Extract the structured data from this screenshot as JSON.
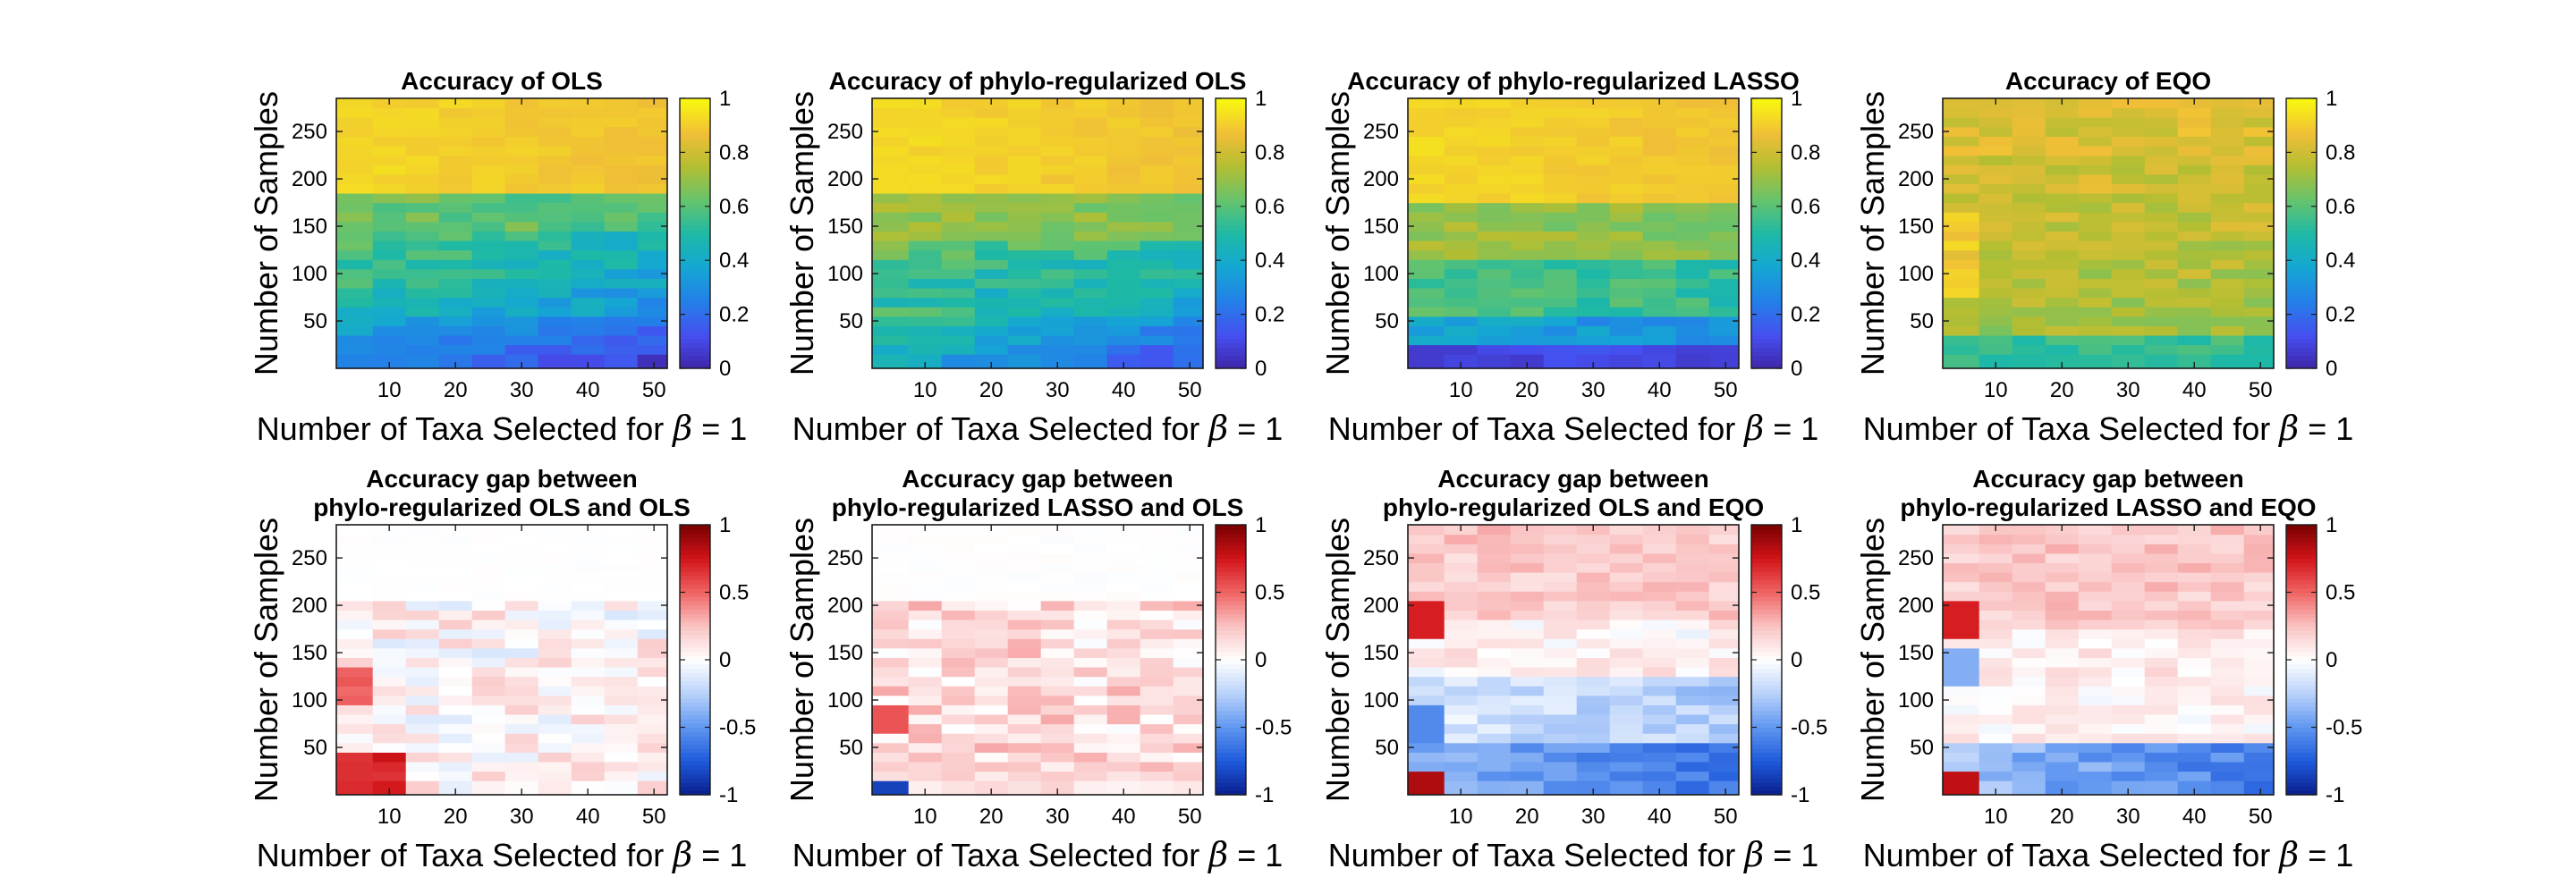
{
  "chart_data": [
    {
      "type": "heatmap",
      "title": "Accuracy of OLS",
      "xlabel": "Number of Taxa Selected for",
      "xlabel_symbol": "β",
      "xlabel_suffix": "= 1",
      "ylabel": "Number of Samples",
      "xticks": [
        "10",
        "20",
        "30",
        "40",
        "50"
      ],
      "yticks": [
        "50",
        "100",
        "150",
        "200",
        "250"
      ],
      "xlim": [
        2,
        52
      ],
      "ylim": [
        0,
        285
      ],
      "colormap": "parula",
      "colorbar": {
        "ticks": [
          "0",
          "0.2",
          "0.4",
          "0.6",
          "0.8",
          "1"
        ],
        "range": [
          0,
          1
        ]
      },
      "profile": "ols",
      "columns": [
        5,
        10,
        15,
        20,
        25,
        30,
        35,
        40,
        45,
        50
      ],
      "rows": [
        10,
        20,
        30,
        40,
        50,
        60,
        70,
        80,
        90,
        100,
        110,
        120,
        130,
        140,
        150,
        160,
        170,
        180,
        190,
        200,
        210,
        220,
        230,
        240,
        250,
        260,
        270,
        280
      ]
    },
    {
      "type": "heatmap",
      "title": "Accuracy of phylo-regularized OLS",
      "xlabel": "Number of Taxa Selected for",
      "xlabel_symbol": "β",
      "xlabel_suffix": "= 1",
      "ylabel": "Number of Samples",
      "xticks": [
        "10",
        "20",
        "30",
        "40",
        "50"
      ],
      "yticks": [
        "50",
        "100",
        "150",
        "200",
        "250"
      ],
      "xlim": [
        2,
        52
      ],
      "ylim": [
        0,
        285
      ],
      "colormap": "parula",
      "colorbar": {
        "ticks": [
          "0",
          "0.2",
          "0.4",
          "0.6",
          "0.8",
          "1"
        ],
        "range": [
          0,
          1
        ]
      },
      "profile": "phylo_ols",
      "columns": [
        5,
        10,
        15,
        20,
        25,
        30,
        35,
        40,
        45,
        50
      ],
      "rows": [
        10,
        20,
        30,
        40,
        50,
        60,
        70,
        80,
        90,
        100,
        110,
        120,
        130,
        140,
        150,
        160,
        170,
        180,
        190,
        200,
        210,
        220,
        230,
        240,
        250,
        260,
        270,
        280
      ]
    },
    {
      "type": "heatmap",
      "title": "Accuracy of phylo-regularized LASSO",
      "xlabel": "Number of Taxa Selected for",
      "xlabel_symbol": "β",
      "xlabel_suffix": "= 1",
      "ylabel": "Number of Samples",
      "xticks": [
        "10",
        "20",
        "30",
        "40",
        "50"
      ],
      "yticks": [
        "50",
        "100",
        "150",
        "200",
        "250"
      ],
      "xlim": [
        2,
        52
      ],
      "ylim": [
        0,
        285
      ],
      "colormap": "parula",
      "colorbar": {
        "ticks": [
          "0",
          "0.2",
          "0.4",
          "0.6",
          "0.8",
          "1"
        ],
        "range": [
          0,
          1
        ]
      },
      "profile": "phylo_lasso",
      "columns": [
        5,
        10,
        15,
        20,
        25,
        30,
        35,
        40,
        45,
        50
      ],
      "rows": [
        10,
        20,
        30,
        40,
        50,
        60,
        70,
        80,
        90,
        100,
        110,
        120,
        130,
        140,
        150,
        160,
        170,
        180,
        190,
        200,
        210,
        220,
        230,
        240,
        250,
        260,
        270,
        280
      ]
    },
    {
      "type": "heatmap",
      "title": "Accuracy of EQO",
      "xlabel": "Number of Taxa Selected for",
      "xlabel_symbol": "β",
      "xlabel_suffix": "= 1",
      "ylabel": "Number of Samples",
      "xticks": [
        "10",
        "20",
        "30",
        "40",
        "50"
      ],
      "yticks": [
        "50",
        "100",
        "150",
        "200",
        "250"
      ],
      "xlim": [
        2,
        52
      ],
      "ylim": [
        0,
        285
      ],
      "colormap": "parula",
      "colorbar": {
        "ticks": [
          "0",
          "0.2",
          "0.4",
          "0.6",
          "0.8",
          "1"
        ],
        "range": [
          0,
          1
        ]
      },
      "profile": "eqo",
      "columns": [
        5,
        10,
        15,
        20,
        25,
        30,
        35,
        40,
        45,
        50
      ],
      "rows": [
        10,
        20,
        30,
        40,
        50,
        60,
        70,
        80,
        90,
        100,
        110,
        120,
        130,
        140,
        150,
        160,
        170,
        180,
        190,
        200,
        210,
        220,
        230,
        240,
        250,
        260,
        270,
        280
      ]
    },
    {
      "type": "heatmap",
      "title": "Accuracy gap between",
      "title_line2": "phylo-regularized OLS and OLS",
      "xlabel": "Number of Taxa Selected for",
      "xlabel_symbol": "β",
      "xlabel_suffix": "= 1",
      "ylabel": "Number of Samples",
      "xticks": [
        "10",
        "20",
        "30",
        "40",
        "50"
      ],
      "yticks": [
        "50",
        "100",
        "150",
        "200",
        "250"
      ],
      "xlim": [
        2,
        52
      ],
      "ylim": [
        0,
        285
      ],
      "colormap": "diverging blue-white-red",
      "colorbar": {
        "ticks": [
          "-1",
          "-0.5",
          "0",
          "0.5",
          "1"
        ],
        "range": [
          -1,
          1
        ]
      },
      "profile": "gap_phylo_ols_vs_ols",
      "columns": [
        5,
        10,
        15,
        20,
        25,
        30,
        35,
        40,
        45,
        50
      ],
      "rows": [
        10,
        20,
        30,
        40,
        50,
        60,
        70,
        80,
        90,
        100,
        110,
        120,
        130,
        140,
        150,
        160,
        170,
        180,
        190,
        200,
        210,
        220,
        230,
        240,
        250,
        260,
        270,
        280
      ]
    },
    {
      "type": "heatmap",
      "title": "Accuracy gap between",
      "title_line2": "phylo-regularized LASSO and OLS",
      "xlabel": "Number of Taxa Selected for",
      "xlabel_symbol": "β",
      "xlabel_suffix": "= 1",
      "ylabel": "Number of Samples",
      "xticks": [
        "10",
        "20",
        "30",
        "40",
        "50"
      ],
      "yticks": [
        "50",
        "100",
        "150",
        "200",
        "250"
      ],
      "xlim": [
        2,
        52
      ],
      "ylim": [
        0,
        285
      ],
      "colormap": "diverging blue-white-red",
      "colorbar": {
        "ticks": [
          "-1",
          "-0.5",
          "0",
          "0.5",
          "1"
        ],
        "range": [
          -1,
          1
        ]
      },
      "profile": "gap_phylo_lasso_vs_ols",
      "columns": [
        5,
        10,
        15,
        20,
        25,
        30,
        35,
        40,
        45,
        50
      ],
      "rows": [
        10,
        20,
        30,
        40,
        50,
        60,
        70,
        80,
        90,
        100,
        110,
        120,
        130,
        140,
        150,
        160,
        170,
        180,
        190,
        200,
        210,
        220,
        230,
        240,
        250,
        260,
        270,
        280
      ]
    },
    {
      "type": "heatmap",
      "title": "Accuracy gap between",
      "title_line2": "phylo-regularized OLS and EQO",
      "xlabel": "Number of Taxa Selected for",
      "xlabel_symbol": "β",
      "xlabel_suffix": "= 1",
      "ylabel": "Number of Samples",
      "xticks": [
        "10",
        "20",
        "30",
        "40",
        "50"
      ],
      "yticks": [
        "50",
        "100",
        "150",
        "200",
        "250"
      ],
      "xlim": [
        2,
        52
      ],
      "ylim": [
        0,
        285
      ],
      "colormap": "diverging blue-white-red",
      "colorbar": {
        "ticks": [
          "-1",
          "-0.5",
          "0",
          "0.5",
          "1"
        ],
        "range": [
          -1,
          1
        ]
      },
      "profile": "gap_phylo_ols_vs_eqo",
      "columns": [
        5,
        10,
        15,
        20,
        25,
        30,
        35,
        40,
        45,
        50
      ],
      "rows": [
        10,
        20,
        30,
        40,
        50,
        60,
        70,
        80,
        90,
        100,
        110,
        120,
        130,
        140,
        150,
        160,
        170,
        180,
        190,
        200,
        210,
        220,
        230,
        240,
        250,
        260,
        270,
        280
      ]
    },
    {
      "type": "heatmap",
      "title": "Accuracy gap between",
      "title_line2": "phylo-regularized LASSO and EQO",
      "xlabel": "Number of Taxa Selected for",
      "xlabel_symbol": "β",
      "xlabel_suffix": "= 1",
      "ylabel": "Number of Samples",
      "xticks": [
        "10",
        "20",
        "30",
        "40",
        "50"
      ],
      "yticks": [
        "50",
        "100",
        "150",
        "200",
        "250"
      ],
      "xlim": [
        2,
        52
      ],
      "ylim": [
        0,
        285
      ],
      "colormap": "diverging blue-white-red",
      "colorbar": {
        "ticks": [
          "-1",
          "-0.5",
          "0",
          "0.5",
          "1"
        ],
        "range": [
          -1,
          1
        ]
      },
      "profile": "gap_phylo_lasso_vs_eqo",
      "columns": [
        5,
        10,
        15,
        20,
        25,
        30,
        35,
        40,
        45,
        50
      ],
      "rows": [
        10,
        20,
        30,
        40,
        50,
        60,
        70,
        80,
        90,
        100,
        110,
        120,
        130,
        140,
        150,
        160,
        170,
        180,
        190,
        200,
        210,
        220,
        230,
        240,
        250,
        260,
        270,
        280
      ]
    }
  ]
}
